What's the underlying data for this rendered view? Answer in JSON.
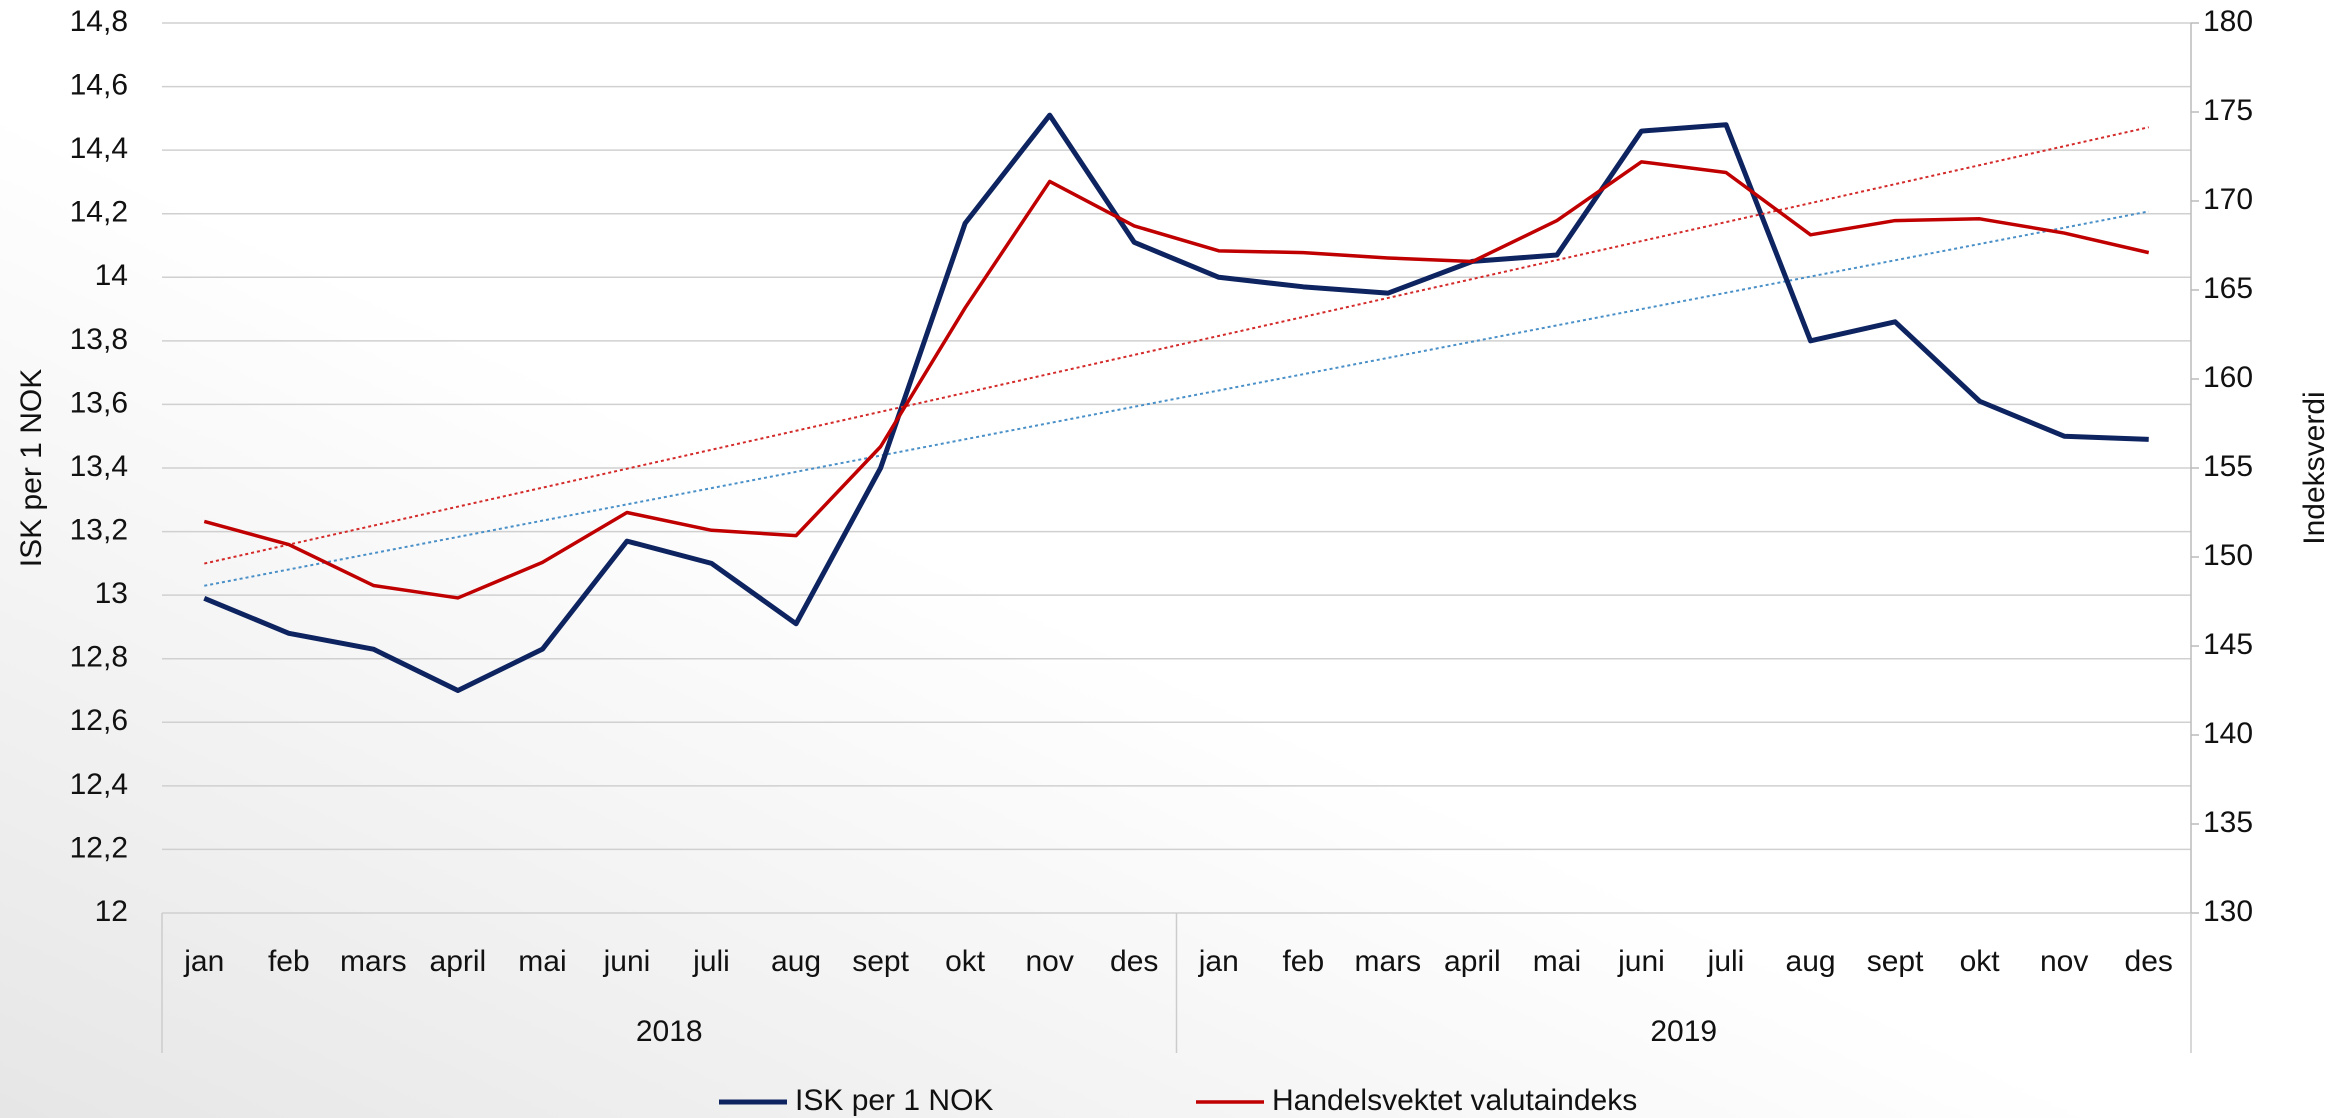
{
  "chart_data": {
    "type": "line",
    "y_label": "ISK per 1 NOK",
    "y2_label": "Indeksverdi",
    "categories": [
      "jan",
      "feb",
      "mars",
      "april",
      "mai",
      "juni",
      "juli",
      "aug",
      "sept",
      "okt",
      "nov",
      "des",
      "jan",
      "feb",
      "mars",
      "april",
      "mai",
      "juni",
      "juli",
      "aug",
      "sept",
      "okt",
      "nov",
      "des"
    ],
    "category_groups": [
      "2018",
      "2019"
    ],
    "series": [
      {
        "name": "ISK per 1 NOK",
        "color": "#0d2461",
        "axis": "y",
        "trendline_color": "#4a90c8",
        "values": [
          12.99,
          12.88,
          12.83,
          12.7,
          12.83,
          13.17,
          13.1,
          12.91,
          13.4,
          14.17,
          14.51,
          14.11,
          14.0,
          13.97,
          13.95,
          14.05,
          14.07,
          14.46,
          14.48,
          13.8,
          13.86,
          13.61,
          13.5,
          13.49
        ]
      },
      {
        "name": "Handelsvektet valutaindeks",
        "color": "#c00000",
        "axis": "y2",
        "trendline_color": "#d42a2a",
        "values": [
          152.0,
          150.7,
          148.4,
          147.7,
          149.7,
          152.5,
          151.5,
          151.2,
          156.2,
          164.0,
          171.1,
          168.6,
          167.2,
          167.1,
          166.8,
          166.6,
          168.9,
          172.2,
          171.6,
          168.1,
          168.9,
          169.0,
          168.2,
          167.1
        ]
      }
    ],
    "trendline": true,
    "ylim": [
      12,
      14.8
    ],
    "yticks": [
      12,
      {
        "value": 12.2,
        "label": "12,2"
      },
      {
        "value": 12.4,
        "label": "12,4"
      },
      {
        "value": 12.6,
        "label": "12,6"
      },
      {
        "value": 12.8,
        "label": "12,8"
      },
      13,
      {
        "value": 13.2,
        "label": "13,2"
      },
      {
        "value": 13.4,
        "label": "13,4"
      },
      {
        "value": 13.6,
        "label": "13,6"
      },
      {
        "value": 13.8,
        "label": "13,8"
      },
      14,
      {
        "value": 14.2,
        "label": "14,2"
      },
      {
        "value": 14.4,
        "label": "14,4"
      },
      {
        "value": 14.6,
        "label": "14,6"
      },
      {
        "value": 14.8,
        "label": "14,8"
      }
    ],
    "y2lim": [
      130,
      180
    ],
    "y2ticks": [
      130,
      135,
      140,
      145,
      150,
      155,
      160,
      165,
      170,
      175,
      180
    ],
    "grid": true,
    "legend": "bottom"
  }
}
